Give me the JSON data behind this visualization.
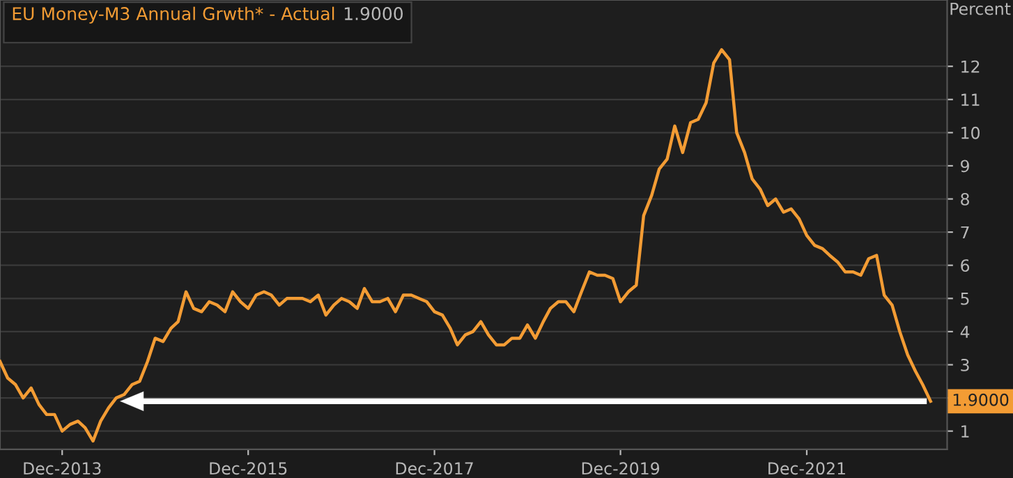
{
  "chart_data": {
    "type": "line",
    "ylabel": "Percent",
    "annotations": [
      "1.9000",
      {
        "text": "1.9000",
        "x": "2023-04",
        "y": 1.9
      }
    ],
    "x": [
      "2013-04",
      "2013-05",
      "2013-06",
      "2013-07",
      "2013-08",
      "2013-09",
      "2013-10",
      "2013-11",
      "2013-12",
      "2014-01",
      "2014-02",
      "2014-03",
      "2014-04",
      "2014-05",
      "2014-06",
      "2014-07",
      "2014-08",
      "2014-09",
      "2014-10",
      "2014-11",
      "2014-12",
      "2015-01",
      "2015-02",
      "2015-03",
      "2015-04",
      "2015-05",
      "2015-06",
      "2015-07",
      "2015-08",
      "2015-09",
      "2015-10",
      "2015-11",
      "2015-12",
      "2016-01",
      "2016-02",
      "2016-03",
      "2016-04",
      "2016-05",
      "2016-06",
      "2016-07",
      "2016-08",
      "2016-09",
      "2016-10",
      "2016-11",
      "2016-12",
      "2017-01",
      "2017-02",
      "2017-03",
      "2017-04",
      "2017-05",
      "2017-06",
      "2017-07",
      "2017-08",
      "2017-09",
      "2017-10",
      "2017-11",
      "2017-12",
      "2018-01",
      "2018-02",
      "2018-03",
      "2018-04",
      "2018-05",
      "2018-06",
      "2018-07",
      "2018-08",
      "2018-09",
      "2018-10",
      "2018-11",
      "2018-12",
      "2019-01",
      "2019-02",
      "2019-03",
      "2019-04",
      "2019-05",
      "2019-06",
      "2019-07",
      "2019-08",
      "2019-09",
      "2019-10",
      "2019-11",
      "2019-12",
      "2020-01",
      "2020-02",
      "2020-03",
      "2020-04",
      "2020-05",
      "2020-06",
      "2020-07",
      "2020-08",
      "2020-09",
      "2020-10",
      "2020-11",
      "2020-12",
      "2021-01",
      "2021-02",
      "2021-03",
      "2021-04",
      "2021-05",
      "2021-06",
      "2021-07",
      "2021-08",
      "2021-09",
      "2021-10",
      "2021-11",
      "2021-12",
      "2022-01",
      "2022-02",
      "2022-03",
      "2022-04",
      "2022-05",
      "2022-06",
      "2022-07",
      "2022-08",
      "2022-09",
      "2022-10",
      "2022-11",
      "2022-12",
      "2023-01",
      "2023-02",
      "2023-03",
      "2023-04"
    ],
    "series": [
      {
        "name": "EU Money-M3 Annual Grwth* - Actual",
        "color": "#f39c34",
        "values": [
          3.1,
          2.6,
          2.4,
          2.0,
          2.3,
          1.8,
          1.5,
          1.5,
          1.0,
          1.2,
          1.3,
          1.1,
          0.7,
          1.3,
          1.7,
          2.0,
          2.1,
          2.4,
          2.5,
          3.1,
          3.8,
          3.7,
          4.1,
          4.3,
          5.2,
          4.7,
          4.6,
          4.9,
          4.8,
          4.6,
          5.2,
          4.9,
          4.7,
          5.1,
          5.2,
          5.1,
          4.8,
          5.0,
          5.0,
          5.0,
          4.9,
          5.1,
          4.5,
          4.8,
          5.0,
          4.9,
          4.7,
          5.3,
          4.9,
          4.9,
          5.0,
          4.6,
          5.1,
          5.1,
          5.0,
          4.9,
          4.6,
          4.5,
          4.1,
          3.6,
          3.9,
          4.0,
          4.3,
          3.9,
          3.6,
          3.6,
          3.8,
          3.8,
          4.2,
          3.8,
          4.3,
          4.7,
          4.9,
          4.9,
          4.6,
          5.2,
          5.8,
          5.7,
          5.7,
          5.6,
          4.9,
          5.2,
          5.4,
          7.5,
          8.1,
          8.9,
          9.2,
          10.2,
          9.4,
          10.3,
          10.4,
          10.9,
          12.1,
          12.5,
          12.2,
          10.0,
          9.4,
          8.6,
          8.3,
          7.8,
          8.0,
          7.6,
          7.7,
          7.4,
          6.9,
          6.6,
          6.5,
          6.3,
          6.1,
          5.8,
          5.8,
          5.7,
          6.2,
          6.3,
          5.1,
          4.8,
          4.0,
          3.3,
          2.8,
          2.4,
          1.9
        ]
      }
    ],
    "ref_lines": [
      {
        "axis": "y",
        "value": 1.9,
        "color": "#ffffff"
      }
    ],
    "xlim": [
      "2013-04-01",
      "2023-06-05"
    ],
    "xticks": [
      {
        "value": "2013-12",
        "label": "Dec-2013"
      },
      {
        "value": "2015-12",
        "label": "Dec-2015"
      },
      {
        "value": "2017-12",
        "label": "Dec-2017"
      },
      {
        "value": "2019-12",
        "label": "Dec-2019"
      },
      {
        "value": "2021-12",
        "label": "Dec-2021"
      }
    ],
    "ylim": [
      0.45,
      14
    ],
    "yticks": [
      1,
      {
        "value": 2,
        "label": null
      },
      3,
      4,
      5,
      6,
      7,
      8,
      9,
      10,
      11,
      12
    ],
    "grid": "y",
    "line_style": "solid",
    "marker": "none"
  }
}
